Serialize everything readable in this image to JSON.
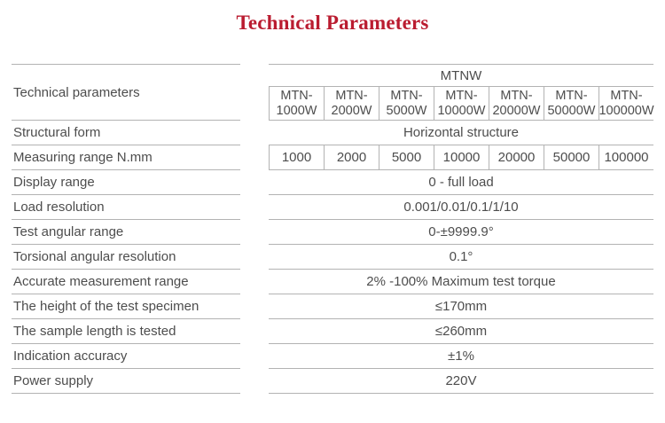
{
  "title": "Technical Parameters",
  "colors": {
    "title": "#ba1c30",
    "text": "#4d4d4d",
    "line": "#b3b3b3"
  },
  "table": {
    "label_header": "Technical parameters",
    "series_header": "MTNW",
    "models": [
      "MTN-1000W",
      "MTN-2000W",
      "MTN-5000W",
      "MTN-10000W",
      "MTN-20000W",
      "MTN-50000W",
      "MTN-100000W"
    ],
    "rows": [
      {
        "label": "Structural form",
        "value": "Horizontal structure"
      },
      {
        "label": "Measuring range N.mm",
        "values": [
          "1000",
          "2000",
          "5000",
          "10000",
          "20000",
          "50000",
          "100000"
        ]
      },
      {
        "label": "Display range",
        "value": "0 - full load"
      },
      {
        "label": "Load resolution",
        "value": "0.001/0.01/0.1/1/10"
      },
      {
        "label": "Test angular range",
        "value": "0-±9999.9°"
      },
      {
        "label": "Torsional angular resolution",
        "value": "0.1°"
      },
      {
        "label": "Accurate measurement range",
        "value": "2% -100% Maximum test torque"
      },
      {
        "label": "The height of the test specimen",
        "value": "≤170mm"
      },
      {
        "label": "The sample length is tested",
        "value": "≤260mm"
      },
      {
        "label": "Indication accuracy",
        "value": "±1%"
      },
      {
        "label": "Power supply",
        "value": "220V"
      }
    ]
  }
}
